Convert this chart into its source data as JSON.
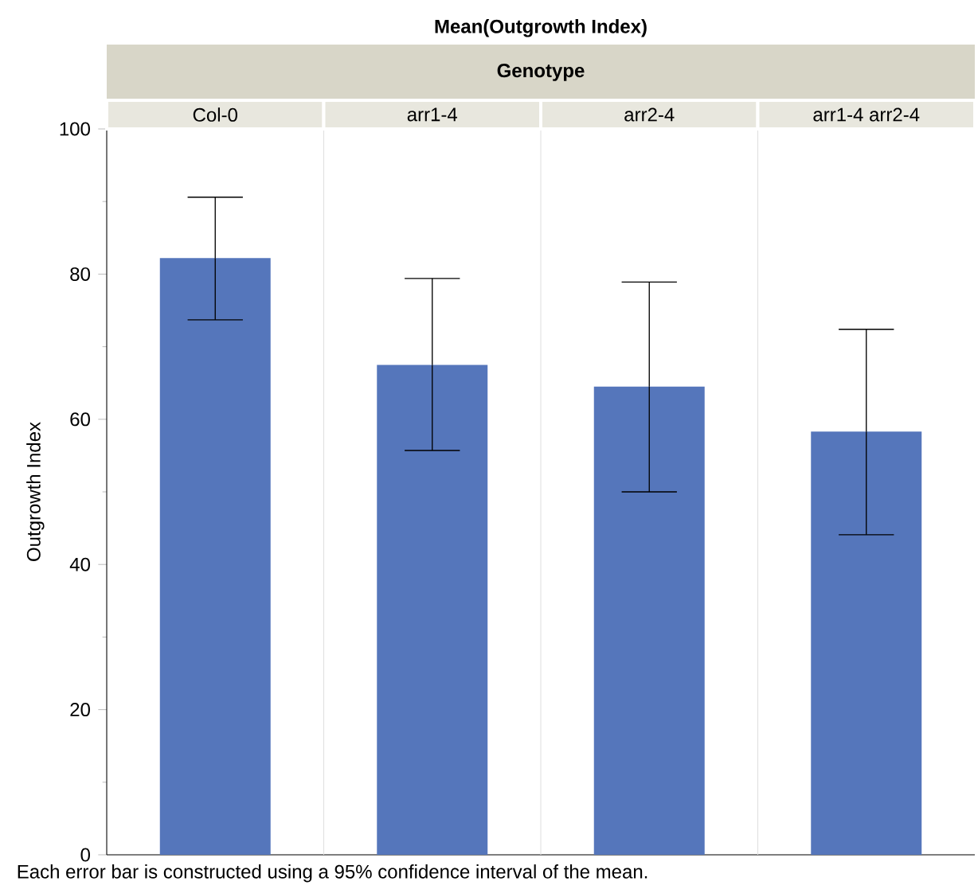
{
  "chart_data": {
    "type": "bar",
    "title": "Mean(Outgrowth Index)",
    "xlabel": "Genotype",
    "ylabel": "Outgrowth Index",
    "categories": [
      "Col-0",
      "arr1-4",
      "arr2-4",
      "arr1-4 arr2-4"
    ],
    "values": [
      82.2,
      67.5,
      64.5,
      58.3
    ],
    "errors": [
      [
        73.7,
        90.6
      ],
      [
        55.7,
        79.4
      ],
      [
        50.0,
        78.9
      ],
      [
        44.1,
        72.4
      ]
    ],
    "color": "#5576bb",
    "ylim": [
      0,
      100
    ],
    "yticks": [
      0,
      20,
      40,
      60,
      80,
      100
    ],
    "annotations": [
      "Each error bar is constructed using a 95% confidence interval of the mean."
    ]
  }
}
